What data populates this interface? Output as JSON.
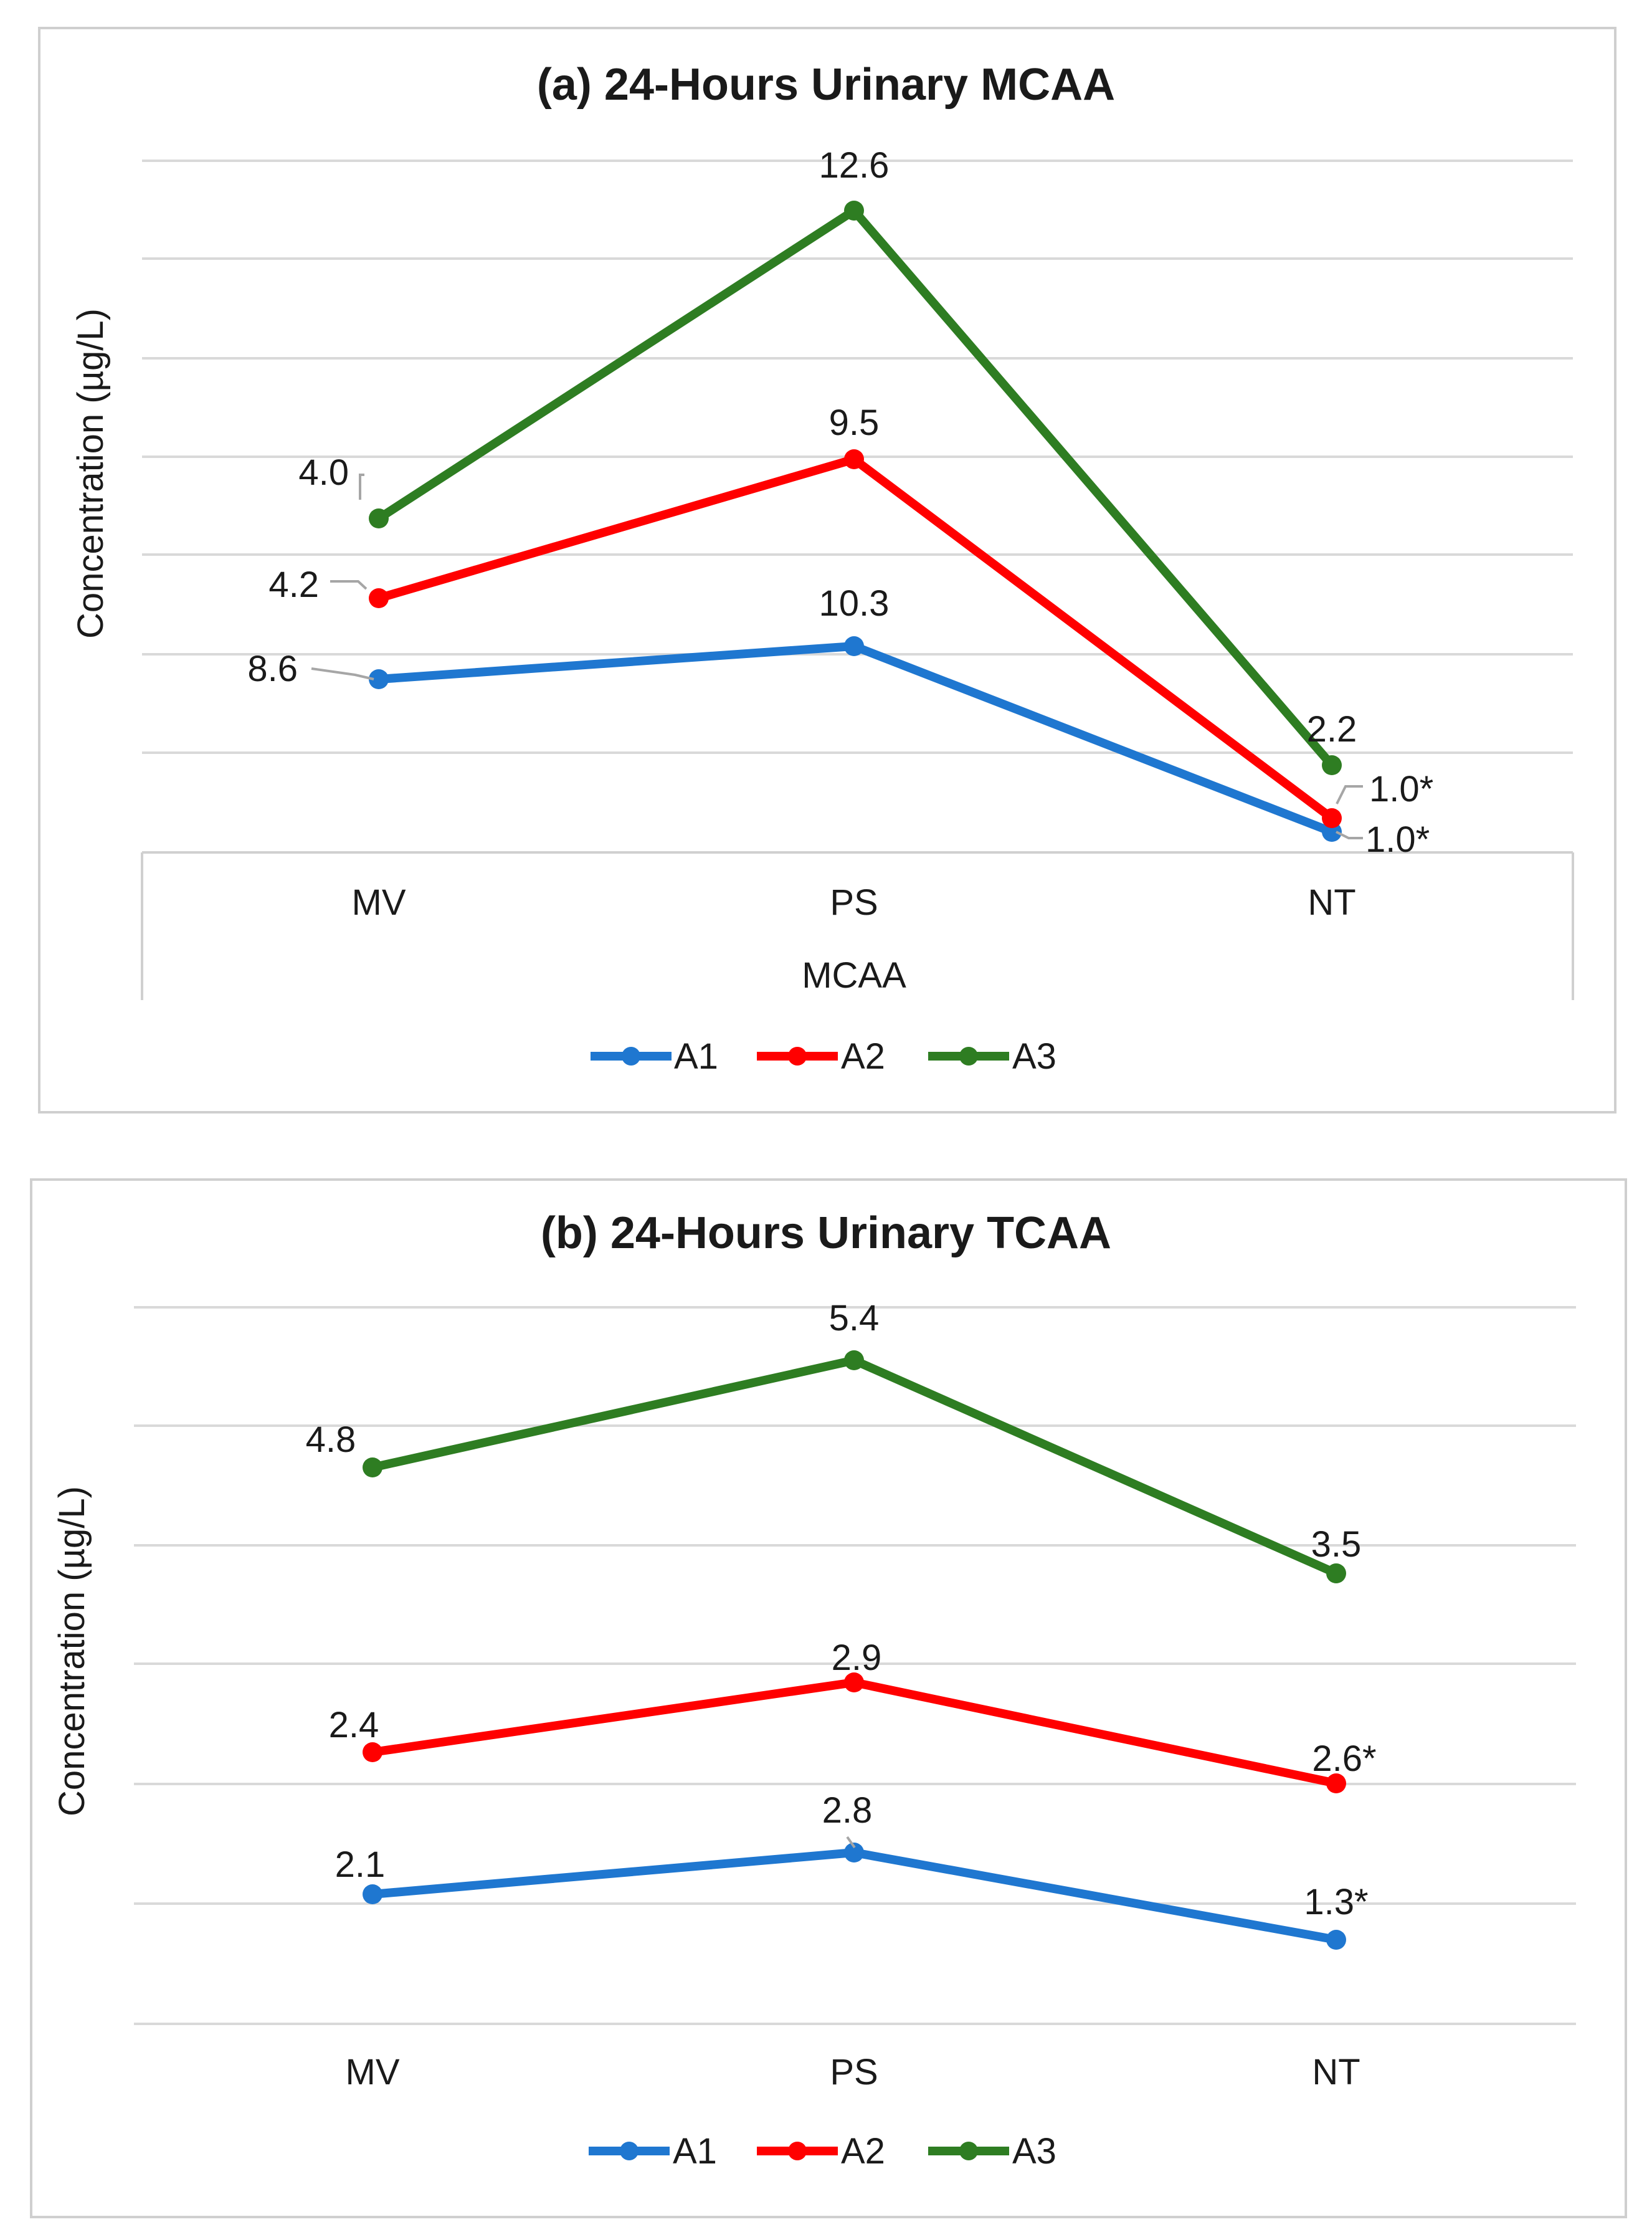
{
  "chart_data": [
    {
      "type": "line",
      "title": "(a) 24-Hours Urinary MCAA",
      "xlabel": "MCAA",
      "ylabel": "Concentration (µg/L)",
      "categories": [
        "MV",
        "PS",
        "NT"
      ],
      "grid": true,
      "legend_position": "bottom",
      "series": [
        {
          "name": "A1",
          "color": "#1f77d0",
          "values": [
            8.6,
            10.3,
            1.0
          ],
          "labels": [
            "8.6",
            "10.3",
            "1.0*"
          ]
        },
        {
          "name": "A2",
          "color": "#ff0000",
          "values": [
            4.2,
            9.5,
            1.0
          ],
          "labels": [
            "4.2",
            "9.5",
            "1.0*"
          ]
        },
        {
          "name": "A3",
          "color": "#2e7d22",
          "values": [
            4.0,
            12.6,
            2.2
          ],
          "labels": [
            "4.0",
            "12.6",
            "2.2"
          ]
        }
      ]
    },
    {
      "type": "line",
      "title": "(b) 24-Hours Urinary TCAA",
      "xlabel": "",
      "ylabel": "Concentration (µg/L)",
      "categories": [
        "MV",
        "PS",
        "NT"
      ],
      "grid": true,
      "legend_position": "bottom",
      "series": [
        {
          "name": "A1",
          "color": "#1f77d0",
          "values": [
            2.1,
            2.8,
            1.3
          ],
          "labels": [
            "2.1",
            "2.8",
            "1.3*"
          ]
        },
        {
          "name": "A2",
          "color": "#ff0000",
          "values": [
            2.4,
            2.9,
            2.6
          ],
          "labels": [
            "2.4",
            "2.9",
            "2.6*"
          ]
        },
        {
          "name": "A3",
          "color": "#2e7d22",
          "values": [
            4.8,
            5.4,
            3.5
          ],
          "labels": [
            "4.8",
            "5.4",
            "3.5"
          ]
        }
      ]
    }
  ]
}
